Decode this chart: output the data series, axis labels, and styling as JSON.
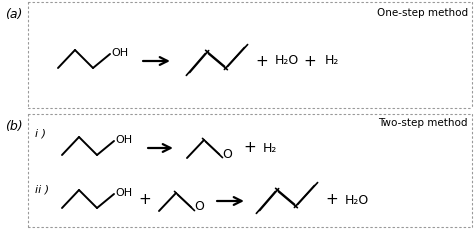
{
  "fig_width": 4.74,
  "fig_height": 2.29,
  "dpi": 100,
  "bg_color": "#ffffff",
  "label_a": "(a)",
  "label_b": "(b)",
  "label_i": "i )",
  "label_ii": "ii )",
  "text_one_step": "One-step method",
  "text_two_step": "Two-step method",
  "text_h2o": "H₂O",
  "text_h2": "H₂",
  "line_color": "#000000",
  "border_color": "#999999",
  "lw_mol": 1.4,
  "lw_border": 0.8,
  "lw_arrow": 1.6
}
